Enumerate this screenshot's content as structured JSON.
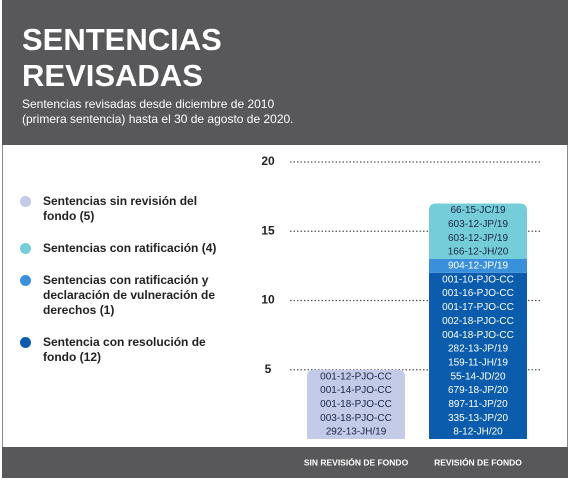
{
  "chart_data": {
    "type": "stacked_bar",
    "title": "SENTENCIAS REVISADAS",
    "subtitle": "Sentencias revisadas desde diciembre de 2010 (primera sentencia) hasta el 30 de agosto de 2020.",
    "categories": [
      "SIN REVISIÓN DE FONDO",
      "REVISIÓN DE FONDO"
    ],
    "ylim": [
      0,
      20
    ],
    "yticks": [
      5,
      10,
      15,
      20
    ],
    "grid": true,
    "legend": "left",
    "series": [
      {
        "name": "Sentencias sin revisión del fondo (5)",
        "color": "#c3cbe9",
        "text_color": "#1d2745",
        "values": [
          5,
          null
        ],
        "cases": [
          [
            "001-12-PJO-CC",
            "001-14-PJO-CC",
            "001-18-PJO-CC",
            "003-18-PJO-CC",
            "292-13-JH/19"
          ],
          null
        ]
      },
      {
        "name": "Sentencias con ratificación (4)",
        "color": "#74cdd8",
        "text_color": "#1d2745",
        "values": [
          null,
          4
        ],
        "cases": [
          null,
          [
            "66-15-JC/19",
            "603-12-JP/19",
            "603-12-JP/19",
            "166-12-JH/20"
          ]
        ]
      },
      {
        "name": "Sentencias con ratificación y declaración de vulneración de derechos (1)",
        "color": "#3a90da",
        "text_color": "#ffffff",
        "values": [
          null,
          1
        ],
        "cases": [
          null,
          [
            "904-12-JP/19"
          ]
        ]
      },
      {
        "name": "Sentencia con resolución de fondo (12)",
        "color": "#0b5cad",
        "text_color": "#ffffff",
        "values": [
          null,
          12
        ],
        "cases": [
          null,
          [
            "001-10-PJO-CC",
            "001-16-PJO-CC",
            "001-17-PJO-CC",
            "002-18-PJO-CC",
            "004-18-PJO-CC",
            "282-13-JP/19",
            "159-11-JH/19",
            "55-14-JD/20",
            "679-18-JP/20",
            "897-11-JP/20",
            "335-13-JP/20",
            "8-12-JH/20"
          ]
        ]
      }
    ]
  }
}
